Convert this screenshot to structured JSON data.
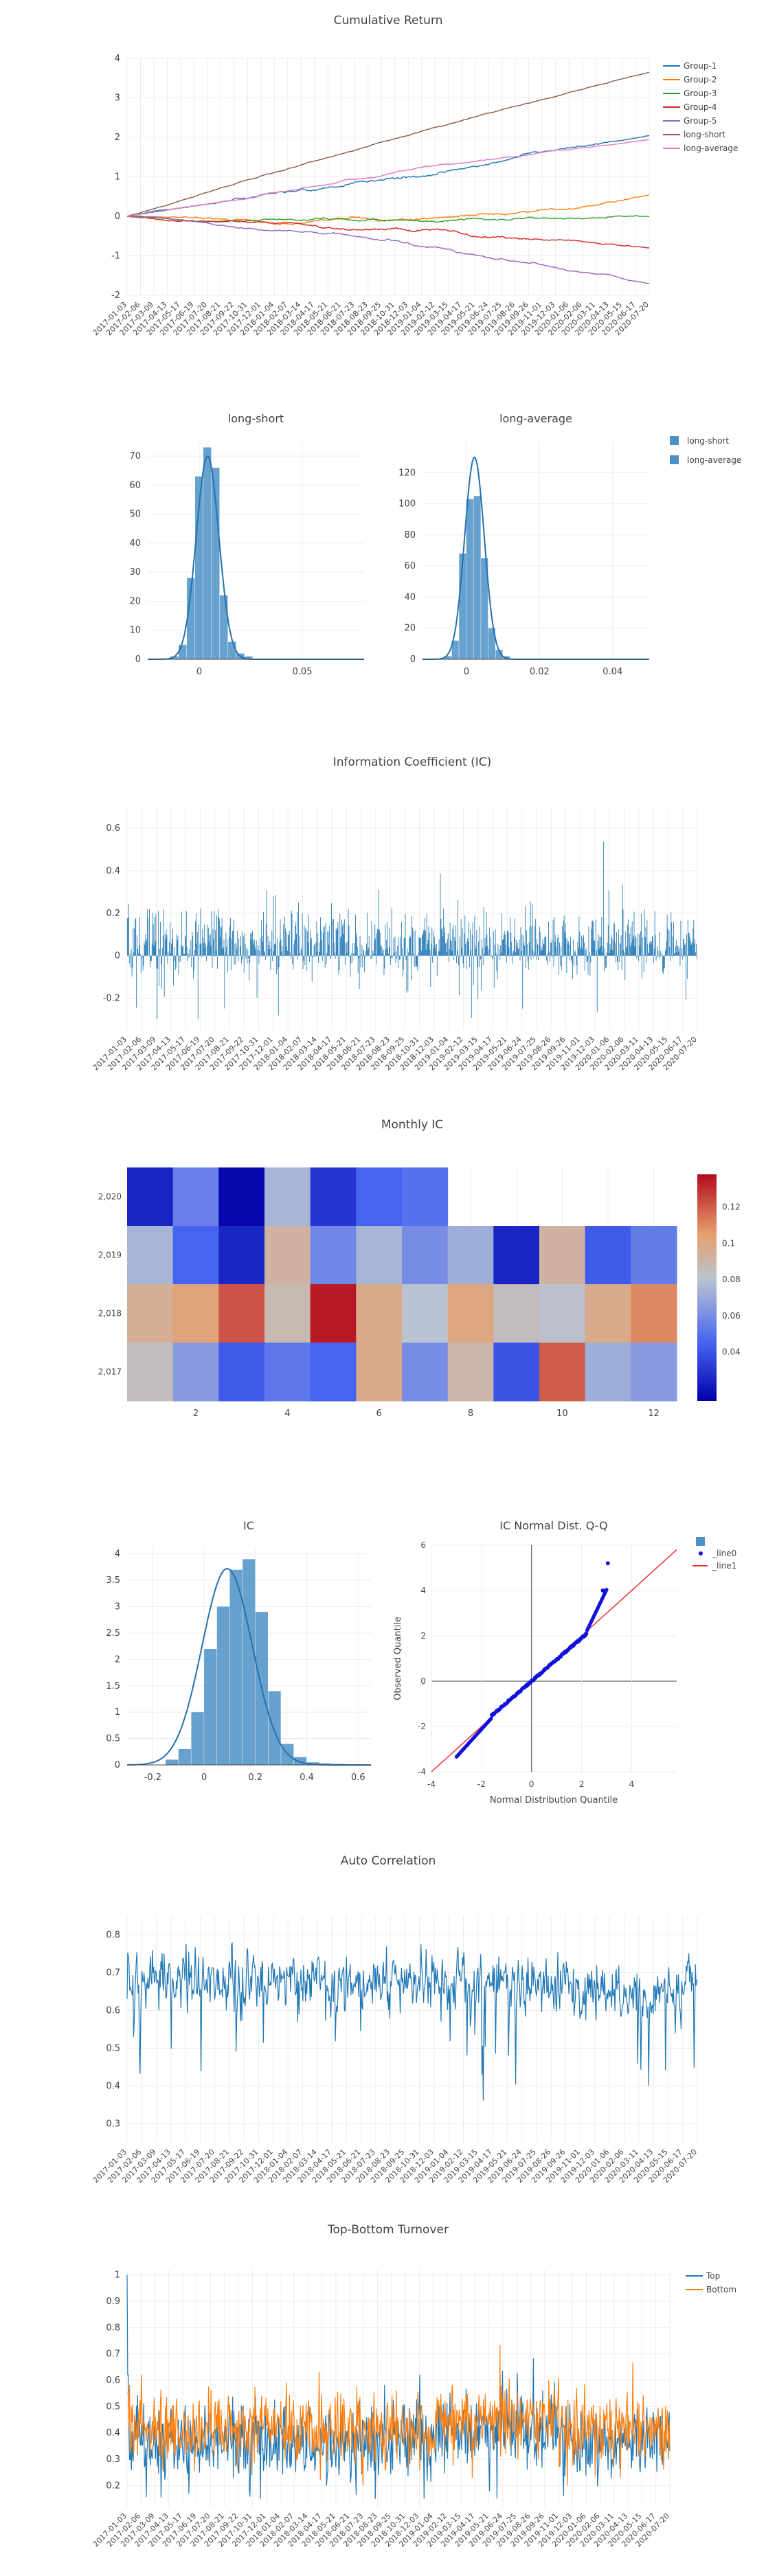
{
  "palette": {
    "group_colors": [
      "#1f77b4",
      "#ff7f0e",
      "#2ca02c",
      "#d62728",
      "#9467bd",
      "#8c564b",
      "#e377c2"
    ],
    "hist": "#4c91c6",
    "bar": "#1f77b4",
    "qq_points": "#1010dd",
    "qq_line": "#e8332f",
    "grid": "#ececec",
    "axis_text": "#444444",
    "title": "#444444"
  },
  "date_ticks": [
    "2017-01-03",
    "2017-02-06",
    "2017-03-09",
    "2017-04-13",
    "2017-05-17",
    "2017-06-19",
    "2017-07-20",
    "2017-08-21",
    "2017-09-22",
    "2017-10-31",
    "2017-12-01",
    "2018-01-04",
    "2018-02-07",
    "2018-03-14",
    "2018-04-17",
    "2018-05-21",
    "2018-06-21",
    "2018-07-23",
    "2018-08-23",
    "2018-09-25",
    "2018-10-31",
    "2018-12-03",
    "2019-01-04",
    "2019-02-12",
    "2019-03-15",
    "2019-04-17",
    "2019-05-21",
    "2019-06-24",
    "2019-07-25",
    "2019-08-26",
    "2019-09-26",
    "2019-11-01",
    "2019-12-03",
    "2020-01-06",
    "2020-02-06",
    "2020-03-11",
    "2020-04-13",
    "2020-05-15",
    "2020-06-17",
    "2020-07-20"
  ],
  "chart_data": [
    {
      "id": "cumret",
      "type": "line",
      "title": "Cumulative Return",
      "ylim": [
        -2,
        4
      ],
      "yticks": [
        "4",
        "3",
        "2",
        "1",
        "0",
        "-1",
        "-2"
      ],
      "ytick_values": [
        4,
        3,
        2,
        1,
        0,
        -1,
        -2
      ],
      "grid": true,
      "legend_position": "top-right",
      "series": [
        {
          "name": "Group-1",
          "end": 2.05
        },
        {
          "name": "Group-2",
          "end": 0.55
        },
        {
          "name": "Group-3",
          "end": 0.0
        },
        {
          "name": "Group-4",
          "end": -0.8
        },
        {
          "name": "Group-5",
          "end": -1.7
        },
        {
          "name": "long-short",
          "end": 3.65
        },
        {
          "name": "long-average",
          "end": 1.95
        }
      ]
    },
    {
      "id": "hist_ls",
      "type": "bar",
      "title": "long-short",
      "xlim": [
        -0.025,
        0.08
      ],
      "ylim": [
        0,
        75
      ],
      "xticks": [
        "0",
        "0.05"
      ],
      "xtick_values": [
        0,
        0.05
      ],
      "yticks": [
        "70",
        "60",
        "50",
        "40",
        "30",
        "20",
        "10",
        "0"
      ],
      "ytick_values": [
        70,
        60,
        50,
        40,
        30,
        20,
        10,
        0
      ],
      "bins": [
        -0.014,
        -0.01,
        -0.006,
        -0.002,
        0.002,
        0.006,
        0.01,
        0.014,
        0.018,
        0.022
      ],
      "values": [
        1,
        5,
        28,
        63,
        73,
        66,
        22,
        6,
        2,
        1
      ],
      "kde_peak": 70
    },
    {
      "id": "hist_la",
      "type": "bar",
      "title": "long-average",
      "xlim": [
        -0.012,
        0.05
      ],
      "ylim": [
        0,
        140
      ],
      "xticks": [
        "0",
        "0.02",
        "0.04"
      ],
      "xtick_values": [
        0,
        0.02,
        0.04
      ],
      "yticks": [
        "120",
        "100",
        "80",
        "60",
        "40",
        "20",
        "0"
      ],
      "ytick_values": [
        120,
        100,
        80,
        60,
        40,
        20,
        0
      ],
      "bins": [
        -0.006,
        -0.004,
        -0.002,
        0,
        0.002,
        0.004,
        0.006,
        0.008,
        0.01
      ],
      "values": [
        2,
        12,
        68,
        103,
        105,
        65,
        20,
        6,
        2
      ],
      "kde_peak": 130,
      "legend": [
        "long-short",
        "long-average"
      ]
    },
    {
      "id": "ic",
      "type": "bar",
      "title": "Information Coefficient (IC)",
      "ylim": [
        -0.35,
        0.7
      ],
      "yticks": [
        "0.6",
        "0.4",
        "0.2",
        "0",
        "-0.2"
      ],
      "ytick_values": [
        0.6,
        0.4,
        0.2,
        0,
        -0.2
      ],
      "n_points": 880
    },
    {
      "id": "monthly_ic",
      "type": "heatmap",
      "title": "Monthly IC",
      "rows": [
        "2,020",
        "2,019",
        "2,018",
        "2,017"
      ],
      "columns": [
        1,
        2,
        3,
        4,
        5,
        6,
        7,
        8,
        9,
        10,
        11,
        12
      ],
      "xticks": [
        "2",
        "4",
        "6",
        "8",
        "10",
        "12"
      ],
      "values": [
        [
          0.025,
          0.055,
          0.015,
          0.075,
          0.03,
          0.045,
          0.05,
          null,
          null,
          null,
          null,
          null
        ],
        [
          0.075,
          0.045,
          0.025,
          0.092,
          0.058,
          0.075,
          0.06,
          0.072,
          0.025,
          0.092,
          0.042,
          0.054
        ],
        [
          0.095,
          0.102,
          0.122,
          0.088,
          0.135,
          0.098,
          0.08,
          0.1,
          0.085,
          0.082,
          0.098,
          0.11
        ],
        [
          0.085,
          0.065,
          0.042,
          0.052,
          0.045,
          0.098,
          0.06,
          0.09,
          0.04,
          0.12,
          0.072,
          0.065
        ]
      ],
      "colorbar_ticks": [
        "0.12",
        "0.1",
        "0.08",
        "0.06",
        "0.04"
      ],
      "colorbar_values": [
        0.12,
        0.1,
        0.08,
        0.06,
        0.04
      ],
      "zlim": [
        0.013,
        0.138
      ]
    },
    {
      "id": "ic_hist",
      "type": "bar",
      "title": "IC",
      "xlim": [
        -0.3,
        0.65
      ],
      "ylim": [
        0,
        4.1
      ],
      "xticks": [
        "-0.2",
        "0",
        "0.2",
        "0.4",
        "0.6"
      ],
      "xtick_values": [
        -0.2,
        0,
        0.2,
        0.4,
        0.6
      ],
      "yticks": [
        "4",
        "3.5",
        "3",
        "2.5",
        "2",
        "1.5",
        "1",
        "0.5",
        "0"
      ],
      "ytick_values": [
        4,
        3.5,
        3,
        2.5,
        2,
        1.5,
        1,
        0.5,
        0
      ],
      "bins": [
        -0.15,
        -0.1,
        -0.05,
        0,
        0.05,
        0.1,
        0.15,
        0.2,
        0.25,
        0.3,
        0.35,
        0.4,
        0.45,
        0.5,
        0.55,
        0.6
      ],
      "values": [
        0.1,
        0.3,
        1.0,
        2.2,
        3.0,
        3.7,
        3.9,
        2.9,
        1.4,
        0.4,
        0.15,
        0.05,
        0.03,
        0.02,
        0.01,
        0.01
      ],
      "kde_peak": 3.72
    },
    {
      "id": "qq",
      "type": "scatter",
      "title": "IC Normal Dist. Q-Q",
      "xlabel": "Normal Distribution Quantile",
      "ylabel": "Observed Quantile",
      "xlim": [
        -4,
        5.8
      ],
      "ylim": [
        -4,
        6
      ],
      "xticks": [
        "-4",
        "-2",
        "0",
        "2",
        "4"
      ],
      "xtick_values": [
        -4,
        -2,
        0,
        2,
        4
      ],
      "yticks": [
        "6",
        "4",
        "2",
        "0",
        "-2",
        "-4"
      ],
      "ytick_values": [
        6,
        4,
        2,
        0,
        -2,
        -4
      ],
      "legend": [
        "_line0",
        "_line1"
      ],
      "series": [
        {
          "name": "_line0",
          "x_range": [
            -3.0,
            3.0
          ]
        },
        {
          "name": "_line1",
          "x": [
            -4,
            5.8
          ],
          "y": [
            -4,
            5.8
          ]
        }
      ]
    },
    {
      "id": "autocorr",
      "type": "line",
      "title": "Auto Correlation",
      "ylim": [
        0.25,
        0.85
      ],
      "yticks": [
        "0.8",
        "0.7",
        "0.6",
        "0.5",
        "0.4",
        "0.3"
      ],
      "ytick_values": [
        0.8,
        0.7,
        0.6,
        0.5,
        0.4,
        0.3
      ],
      "n_points": 880
    },
    {
      "id": "turnover",
      "type": "line",
      "title": "Top-Bottom Turnover",
      "ylim": [
        0.12,
        1.02
      ],
      "yticks": [
        "1",
        "0.9",
        "0.8",
        "0.7",
        "0.6",
        "0.5",
        "0.4",
        "0.3",
        "0.2"
      ],
      "ytick_values": [
        1,
        0.9,
        0.8,
        0.7,
        0.6,
        0.5,
        0.4,
        0.3,
        0.2
      ],
      "legend_position": "top-right",
      "series": [
        {
          "name": "Top"
        },
        {
          "name": "Bottom"
        }
      ],
      "n_points": 880
    }
  ]
}
